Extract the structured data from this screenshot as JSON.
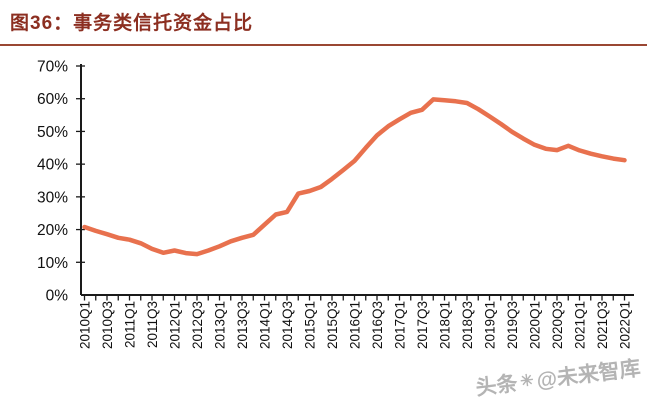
{
  "header": {
    "title": "图36：事务类信托资金占比"
  },
  "watermark": {
    "left": "头条",
    "logo_glyph": "✳",
    "right": "@未来智库"
  },
  "colors": {
    "title": "#8C2F21",
    "rule": "#9A4733",
    "axis": "#1a1a1a",
    "text": "#111111",
    "line": "#E8714E",
    "watermark": "#777777"
  },
  "chart_data": {
    "type": "line",
    "title": "事务类信托资金占比",
    "xlabel": "",
    "ylabel": "",
    "ylim": [
      0,
      70
    ],
    "grid": false,
    "legend": "none",
    "y_tick_labels": [
      "0%",
      "10%",
      "20%",
      "30%",
      "40%",
      "50%",
      "60%",
      "70%"
    ],
    "x": [
      "2010Q1",
      "2010Q2",
      "2010Q3",
      "2010Q4",
      "2011Q1",
      "2011Q2",
      "2011Q3",
      "2011Q4",
      "2012Q1",
      "2012Q2",
      "2012Q3",
      "2012Q4",
      "2013Q1",
      "2013Q2",
      "2013Q3",
      "2013Q4",
      "2014Q1",
      "2014Q2",
      "2014Q3",
      "2014Q4",
      "2015Q1",
      "2015Q2",
      "2015Q3",
      "2015Q4",
      "2016Q1",
      "2016Q2",
      "2016Q3",
      "2016Q4",
      "2017Q1",
      "2017Q2",
      "2017Q3",
      "2017Q4",
      "2018Q1",
      "2018Q2",
      "2018Q3",
      "2018Q4",
      "2019Q1",
      "2019Q2",
      "2019Q3",
      "2019Q4",
      "2020Q1",
      "2020Q2",
      "2020Q3",
      "2020Q4",
      "2021Q1",
      "2021Q2",
      "2021Q3",
      "2021Q4",
      "2022Q1"
    ],
    "x_tick_labels": [
      "2010Q1",
      "2010Q3",
      "2011Q1",
      "2011Q3",
      "2012Q1",
      "2012Q3",
      "2013Q1",
      "2013Q3",
      "2014Q1",
      "2014Q3",
      "2015Q1",
      "2015Q3",
      "2016Q1",
      "2016Q3",
      "2017Q1",
      "2017Q3",
      "2018Q1",
      "2018Q3",
      "2019Q1",
      "2019Q3",
      "2020Q1",
      "2020Q3",
      "2021Q1",
      "2021Q3",
      "2022Q1"
    ],
    "series": [
      {
        "name": "事务类信托资金占比",
        "color": "#E8714E",
        "values": [
          20.8,
          19.6,
          18.6,
          17.5,
          16.9,
          15.8,
          14.1,
          12.9,
          13.6,
          12.8,
          12.5,
          13.6,
          14.9,
          16.4,
          17.5,
          18.4,
          21.5,
          24.6,
          25.4,
          31.0,
          31.8,
          33.0,
          35.5,
          38.2,
          41.0,
          45.0,
          48.8,
          51.6,
          53.7,
          55.7,
          56.6,
          59.8,
          59.5,
          59.2,
          58.7,
          56.8,
          54.6,
          52.3,
          49.9,
          47.8,
          45.9,
          44.7,
          44.3,
          45.6,
          44.2,
          43.2,
          42.4,
          41.7,
          41.2
        ]
      }
    ]
  }
}
